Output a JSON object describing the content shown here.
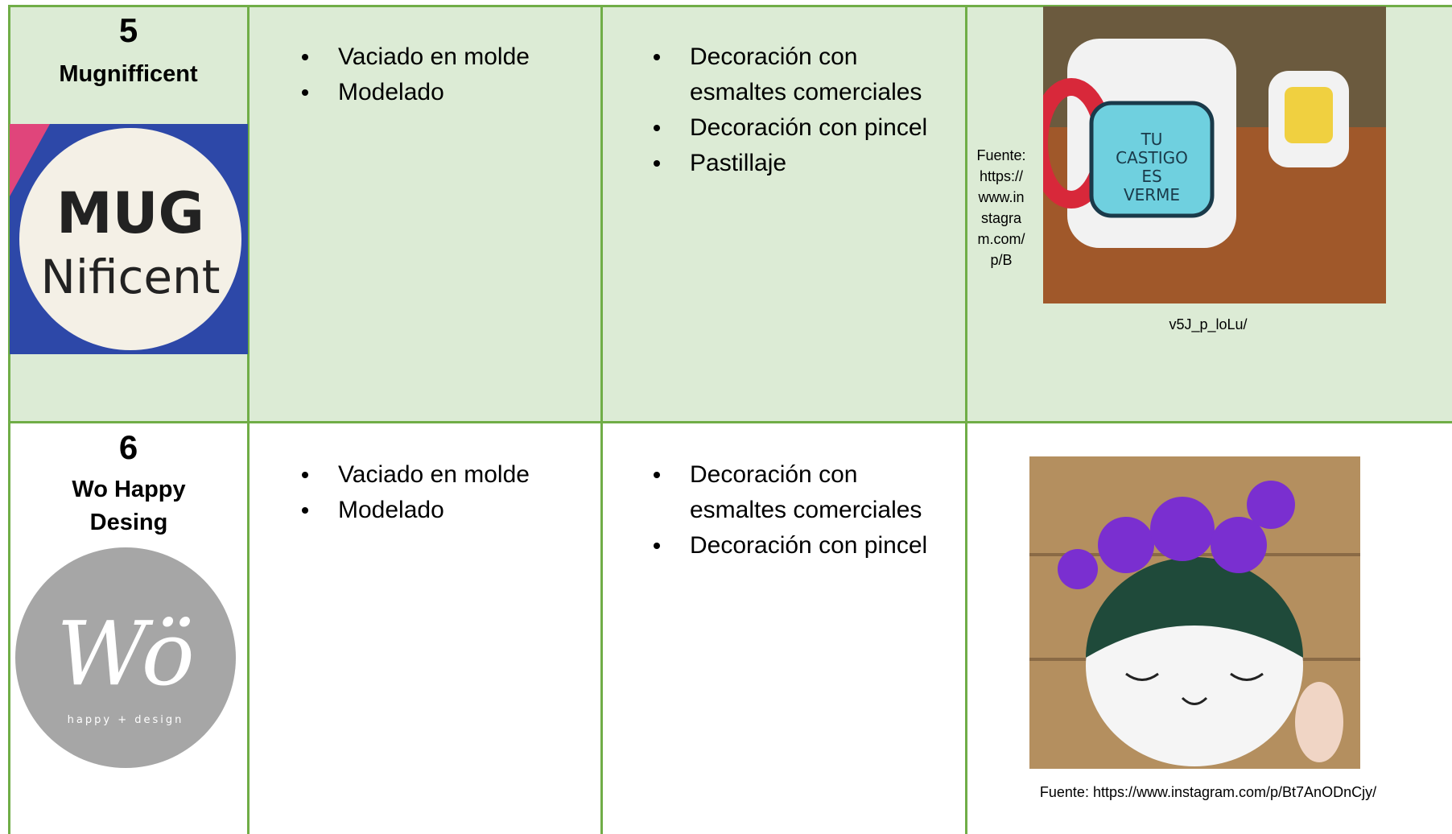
{
  "rows": [
    {
      "number": "5",
      "name": "Mugnifficent",
      "logo_text": [
        "MUG",
        "Nificent"
      ],
      "processes": [
        "Vaciado en molde",
        "Modelado"
      ],
      "decorations": [
        "Decoración con esmaltes comerciales",
        "Decoración con pincel",
        "Pastillaje"
      ],
      "photo_text": [
        "TU",
        "CASTIGO",
        "ES",
        "VERME"
      ],
      "source": [
        "Fuente: https://www.instagram.com/p/B",
        "v5J_p_loLu/"
      ]
    },
    {
      "number": "6",
      "name": "Wo Happy Desing",
      "logo_text": [
        "Wö",
        "happy + design"
      ],
      "processes": [
        "Vaciado en molde",
        "Modelado"
      ],
      "decorations": [
        "Decoración con esmaltes comerciales",
        "Decoración con pincel"
      ],
      "source": [
        "Fuente: https://www.instagram.com/p/Bt7AnODnCjy/"
      ]
    }
  ]
}
